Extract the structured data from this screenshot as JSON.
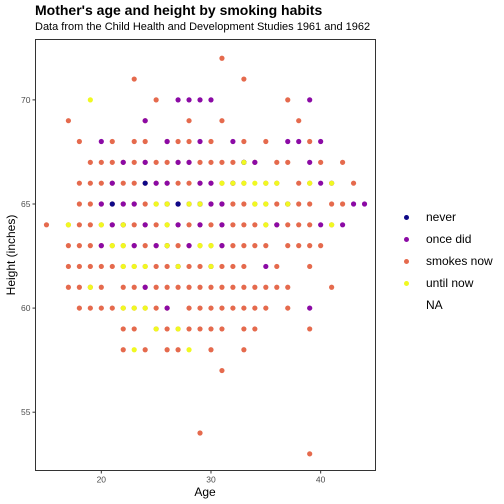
{
  "chart_data": {
    "type": "scatter",
    "title": "Mother's age and height by smoking habits",
    "subtitle": "Data from the Child Health and Development Studies 1961 and 1962",
    "xlabel": "Age",
    "ylabel": "Height (inches)",
    "xlim": [
      14,
      45
    ],
    "ylim": [
      52.2,
      72.9
    ],
    "x_ticks": [
      20,
      30,
      40
    ],
    "y_ticks": [
      55,
      60,
      65,
      70
    ],
    "grid": false,
    "legend_position": "right",
    "legend": [
      {
        "label": "never",
        "color": "#0d0887"
      },
      {
        "label": "once did",
        "color": "#8b0aa5"
      },
      {
        "label": "smokes now",
        "color": "#e56a4d"
      },
      {
        "label": "until now",
        "color": "#f0f921"
      },
      {
        "label": "NA",
        "color": ""
      }
    ],
    "series": [
      {
        "name": "smokes now",
        "color": "#e56a4d",
        "points": [
          [
            15,
            64
          ],
          [
            17,
            69
          ],
          [
            17,
            64
          ],
          [
            17,
            63
          ],
          [
            17,
            62
          ],
          [
            17,
            61
          ],
          [
            18,
            68
          ],
          [
            18,
            66
          ],
          [
            18,
            65
          ],
          [
            18,
            64
          ],
          [
            18,
            63
          ],
          [
            18,
            62
          ],
          [
            18,
            61
          ],
          [
            18,
            60
          ],
          [
            19,
            67
          ],
          [
            19,
            66
          ],
          [
            19,
            65
          ],
          [
            19,
            64
          ],
          [
            19,
            63
          ],
          [
            19,
            62
          ],
          [
            19,
            61
          ],
          [
            19,
            60
          ],
          [
            20,
            67
          ],
          [
            20,
            66
          ],
          [
            20,
            65
          ],
          [
            20,
            64
          ],
          [
            20,
            63
          ],
          [
            20,
            62
          ],
          [
            20,
            61
          ],
          [
            20,
            60
          ],
          [
            21,
            68
          ],
          [
            21,
            67
          ],
          [
            21,
            66
          ],
          [
            21,
            65
          ],
          [
            21,
            64
          ],
          [
            21,
            63
          ],
          [
            21,
            62
          ],
          [
            21,
            60
          ],
          [
            22,
            67
          ],
          [
            22,
            66
          ],
          [
            22,
            65
          ],
          [
            22,
            64
          ],
          [
            22,
            63
          ],
          [
            22,
            62
          ],
          [
            22,
            61
          ],
          [
            22,
            60
          ],
          [
            22,
            59
          ],
          [
            22,
            58
          ],
          [
            23,
            71
          ],
          [
            23,
            68
          ],
          [
            23,
            67
          ],
          [
            23,
            66
          ],
          [
            23,
            65
          ],
          [
            23,
            64
          ],
          [
            23,
            63
          ],
          [
            23,
            62
          ],
          [
            23,
            61
          ],
          [
            23,
            60
          ],
          [
            23,
            59
          ],
          [
            24,
            69
          ],
          [
            24,
            68
          ],
          [
            24,
            67
          ],
          [
            24,
            66
          ],
          [
            24,
            65
          ],
          [
            24,
            64
          ],
          [
            24,
            63
          ],
          [
            24,
            62
          ],
          [
            24,
            61
          ],
          [
            24,
            60
          ],
          [
            24,
            58
          ],
          [
            25,
            70
          ],
          [
            25,
            67
          ],
          [
            25,
            66
          ],
          [
            25,
            65
          ],
          [
            25,
            64
          ],
          [
            25,
            63
          ],
          [
            25,
            62
          ],
          [
            25,
            61
          ],
          [
            25,
            60
          ],
          [
            25,
            59
          ],
          [
            26,
            68
          ],
          [
            26,
            67
          ],
          [
            26,
            66
          ],
          [
            26,
            65
          ],
          [
            26,
            64
          ],
          [
            26,
            63
          ],
          [
            26,
            62
          ],
          [
            26,
            61
          ],
          [
            26,
            60
          ],
          [
            26,
            59
          ],
          [
            26,
            58
          ],
          [
            27,
            68
          ],
          [
            27,
            67
          ],
          [
            27,
            66
          ],
          [
            27,
            65
          ],
          [
            27,
            64
          ],
          [
            27,
            63
          ],
          [
            27,
            62
          ],
          [
            27,
            61
          ],
          [
            27,
            59
          ],
          [
            27,
            58
          ],
          [
            28,
            69
          ],
          [
            28,
            68
          ],
          [
            28,
            67
          ],
          [
            28,
            66
          ],
          [
            28,
            65
          ],
          [
            28,
            64
          ],
          [
            28,
            63
          ],
          [
            28,
            62
          ],
          [
            28,
            61
          ],
          [
            28,
            60
          ],
          [
            28,
            59
          ],
          [
            29,
            67
          ],
          [
            29,
            66
          ],
          [
            29,
            65
          ],
          [
            29,
            64
          ],
          [
            29,
            63
          ],
          [
            29,
            62
          ],
          [
            29,
            61
          ],
          [
            29,
            60
          ],
          [
            29,
            59
          ],
          [
            29,
            54
          ],
          [
            30,
            68
          ],
          [
            30,
            67
          ],
          [
            30,
            66
          ],
          [
            30,
            65
          ],
          [
            30,
            64
          ],
          [
            30,
            63
          ],
          [
            30,
            62
          ],
          [
            30,
            61
          ],
          [
            30,
            60
          ],
          [
            30,
            59
          ],
          [
            30,
            58
          ],
          [
            31,
            72
          ],
          [
            31,
            69
          ],
          [
            31,
            67
          ],
          [
            31,
            66
          ],
          [
            31,
            65
          ],
          [
            31,
            64
          ],
          [
            31,
            63
          ],
          [
            31,
            62
          ],
          [
            31,
            61
          ],
          [
            31,
            60
          ],
          [
            31,
            59
          ],
          [
            31,
            57
          ],
          [
            32,
            67
          ],
          [
            32,
            66
          ],
          [
            32,
            65
          ],
          [
            32,
            64
          ],
          [
            32,
            63
          ],
          [
            32,
            62
          ],
          [
            32,
            61
          ],
          [
            32,
            60
          ],
          [
            33,
            71
          ],
          [
            33,
            68
          ],
          [
            33,
            66
          ],
          [
            33,
            65
          ],
          [
            33,
            64
          ],
          [
            33,
            63
          ],
          [
            33,
            62
          ],
          [
            33,
            61
          ],
          [
            33,
            60
          ],
          [
            33,
            59
          ],
          [
            33,
            58
          ],
          [
            34,
            67
          ],
          [
            34,
            65
          ],
          [
            34,
            64
          ],
          [
            34,
            63
          ],
          [
            34,
            61
          ],
          [
            34,
            60
          ],
          [
            34,
            59
          ],
          [
            35,
            68
          ],
          [
            35,
            66
          ],
          [
            35,
            65
          ],
          [
            35,
            64
          ],
          [
            35,
            63
          ],
          [
            35,
            61
          ],
          [
            35,
            60
          ],
          [
            36,
            67
          ],
          [
            36,
            66
          ],
          [
            36,
            65
          ],
          [
            36,
            64
          ],
          [
            36,
            62
          ],
          [
            36,
            61
          ],
          [
            37,
            70
          ],
          [
            37,
            67
          ],
          [
            37,
            65
          ],
          [
            37,
            64
          ],
          [
            37,
            63
          ],
          [
            37,
            61
          ],
          [
            37,
            60
          ],
          [
            38,
            69
          ],
          [
            38,
            66
          ],
          [
            38,
            65
          ],
          [
            38,
            64
          ],
          [
            38,
            63
          ],
          [
            39,
            68
          ],
          [
            39,
            66
          ],
          [
            39,
            65
          ],
          [
            39,
            64
          ],
          [
            39,
            63
          ],
          [
            39,
            62
          ],
          [
            39,
            59
          ],
          [
            39,
            53
          ],
          [
            40,
            67
          ],
          [
            40,
            63
          ],
          [
            41,
            65
          ],
          [
            41,
            64
          ],
          [
            41,
            61
          ],
          [
            42,
            67
          ],
          [
            42,
            65
          ],
          [
            43,
            66
          ]
        ]
      },
      {
        "name": "once did",
        "color": "#8b0aa5",
        "points": [
          [
            20,
            68
          ],
          [
            20,
            65
          ],
          [
            20,
            63
          ],
          [
            21,
            66
          ],
          [
            21,
            64
          ],
          [
            22,
            67
          ],
          [
            22,
            65
          ],
          [
            22,
            64
          ],
          [
            23,
            65
          ],
          [
            23,
            63
          ],
          [
            24,
            69
          ],
          [
            24,
            67
          ],
          [
            24,
            64
          ],
          [
            24,
            61
          ],
          [
            25,
            66
          ],
          [
            25,
            63
          ],
          [
            26,
            68
          ],
          [
            26,
            66
          ],
          [
            26,
            65
          ],
          [
            26,
            63
          ],
          [
            26,
            60
          ],
          [
            27,
            70
          ],
          [
            27,
            67
          ],
          [
            27,
            65
          ],
          [
            27,
            64
          ],
          [
            27,
            62
          ],
          [
            28,
            70
          ],
          [
            28,
            67
          ],
          [
            28,
            65
          ],
          [
            28,
            63
          ],
          [
            29,
            70
          ],
          [
            29,
            68
          ],
          [
            29,
            66
          ],
          [
            29,
            65
          ],
          [
            29,
            64
          ],
          [
            30,
            70
          ],
          [
            30,
            66
          ],
          [
            30,
            65
          ],
          [
            30,
            62
          ],
          [
            31,
            65
          ],
          [
            31,
            64
          ],
          [
            31,
            63
          ],
          [
            32,
            68
          ],
          [
            32,
            66
          ],
          [
            33,
            67
          ],
          [
            34,
            67
          ],
          [
            35,
            62
          ],
          [
            36,
            64
          ],
          [
            37,
            68
          ],
          [
            37,
            65
          ],
          [
            38,
            68
          ],
          [
            39,
            70
          ],
          [
            39,
            67
          ],
          [
            39,
            60
          ],
          [
            40,
            68
          ],
          [
            40,
            66
          ],
          [
            40,
            64
          ],
          [
            41,
            66
          ],
          [
            42,
            64
          ],
          [
            43,
            65
          ],
          [
            44,
            65
          ]
        ]
      },
      {
        "name": "never",
        "color": "#0d0887",
        "points": [
          [
            21,
            65
          ],
          [
            24,
            66
          ],
          [
            27,
            65
          ],
          [
            29,
            65
          ],
          [
            33,
            67
          ]
        ]
      },
      {
        "name": "until now",
        "color": "#f0f921",
        "points": [
          [
            17,
            64
          ],
          [
            19,
            70
          ],
          [
            19,
            61
          ],
          [
            20,
            64
          ],
          [
            21,
            63
          ],
          [
            22,
            64
          ],
          [
            22,
            63
          ],
          [
            22,
            62
          ],
          [
            22,
            60
          ],
          [
            23,
            58
          ],
          [
            23,
            62
          ],
          [
            23,
            60
          ],
          [
            24,
            62
          ],
          [
            24,
            60
          ],
          [
            25,
            59
          ],
          [
            25,
            65
          ],
          [
            26,
            65
          ],
          [
            26,
            64
          ],
          [
            26,
            63
          ],
          [
            27,
            62
          ],
          [
            27,
            59
          ],
          [
            28,
            65
          ],
          [
            28,
            58
          ],
          [
            29,
            65
          ],
          [
            29,
            63
          ],
          [
            30,
            63
          ],
          [
            30,
            62
          ],
          [
            31,
            66
          ],
          [
            32,
            66
          ],
          [
            33,
            67
          ],
          [
            33,
            66
          ],
          [
            34,
            66
          ],
          [
            34,
            65
          ],
          [
            35,
            66
          ],
          [
            35,
            65
          ],
          [
            35,
            64
          ],
          [
            36,
            66
          ],
          [
            37,
            65
          ],
          [
            39,
            66
          ],
          [
            41,
            66
          ],
          [
            41,
            64
          ]
        ]
      }
    ]
  }
}
